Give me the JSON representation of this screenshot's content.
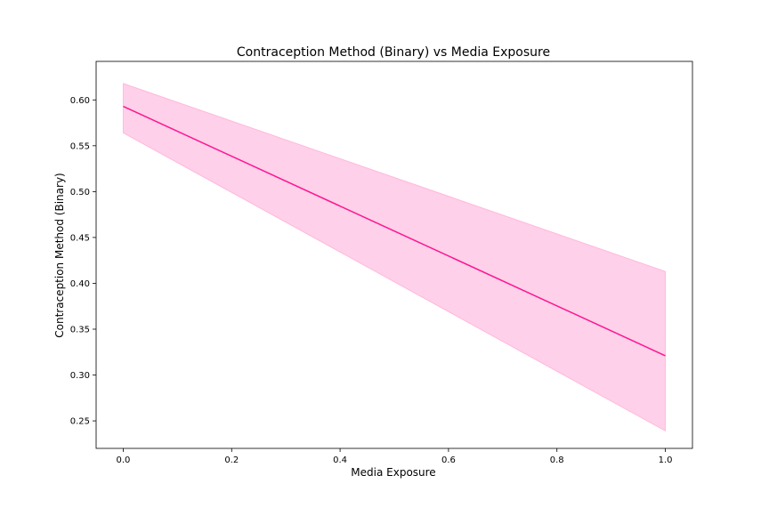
{
  "chart_data": {
    "type": "line",
    "title": "Contraception Method (Binary) vs Media Exposure",
    "xlabel": "Media Exposure",
    "ylabel": "Contraception Method (Binary)",
    "xlim": [
      -0.05,
      1.05
    ],
    "ylim": [
      0.22,
      0.642
    ],
    "xticks": [
      0.0,
      0.2,
      0.4,
      0.6,
      0.8,
      1.0
    ],
    "xtick_labels": [
      "0.0",
      "0.2",
      "0.4",
      "0.6",
      "0.8",
      "1.0"
    ],
    "yticks": [
      0.25,
      0.3,
      0.35,
      0.4,
      0.45,
      0.5,
      0.55,
      0.6
    ],
    "ytick_labels": [
      "0.25",
      "0.30",
      "0.35",
      "0.40",
      "0.45",
      "0.50",
      "0.55",
      "0.60"
    ],
    "grid": false,
    "series": [
      {
        "x": [
          0.0,
          1.0
        ],
        "y": [
          0.593,
          0.321
        ],
        "ci_lower": [
          0.564,
          0.239
        ],
        "ci_upper": [
          0.618,
          0.413
        ]
      }
    ],
    "colors": {
      "line": "#ff1493",
      "band": "#ff1493",
      "axes": "#000000"
    }
  }
}
